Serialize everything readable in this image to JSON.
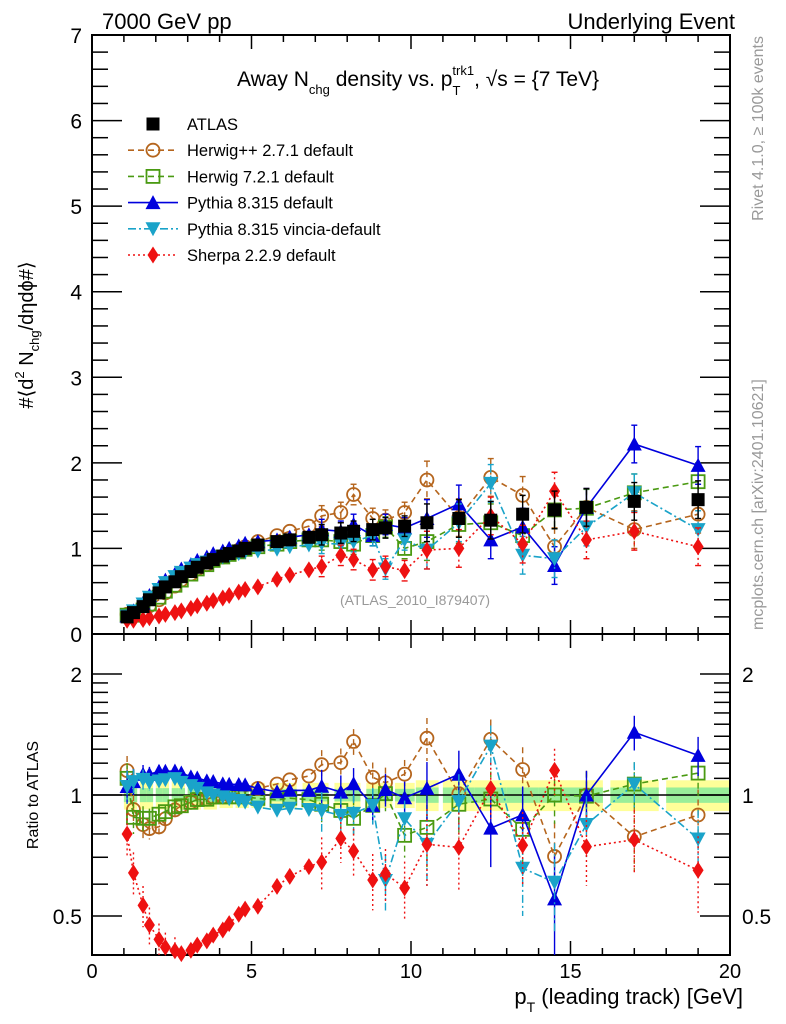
{
  "header": {
    "left": "7000 GeV pp",
    "right": "Underlying Event"
  },
  "side_labels": {
    "rivet": "Rivet 4.1.0, ≥ 100k events",
    "mcplots": "mcplots.cern.ch [arXiv:2401.10621]"
  },
  "analysis_tag": "(ATLAS_2010_I879407)",
  "chart_data": {
    "type": "scatter",
    "title": {
      "part1": "Away N",
      "sub1": "chg",
      "part2": " density vs. p",
      "sub2": "T",
      "sup2": "trk1",
      "part3": ", √s = {7 TeV}"
    },
    "xlabel": {
      "main": "p",
      "sub": "T",
      "rest": " (leading track) [GeV]"
    },
    "ylabel": {
      "pre": "#⟨d",
      "sup": "2",
      "mid": " N",
      "sub": "chg",
      "post": "/dηdϕ#⟩"
    },
    "ratio_ylabel": "Ratio to ATLAS",
    "xlim": [
      0,
      20
    ],
    "ylim": [
      0,
      7
    ],
    "ratio_ylim": [
      0.4,
      2.5
    ],
    "ratio_scale": "log",
    "x_ticks": [
      "0",
      "5",
      "10",
      "15",
      "20"
    ],
    "y_ticks": [
      "0",
      "1",
      "2",
      "3",
      "4",
      "5",
      "6",
      "7"
    ],
    "ratio_ticks": [
      "0.5",
      "1",
      "2"
    ],
    "legend_position": "top-left",
    "x": [
      1.1,
      1.3,
      1.6,
      1.8,
      2.1,
      2.3,
      2.6,
      2.8,
      3.1,
      3.3,
      3.6,
      3.8,
      4.1,
      4.3,
      4.6,
      4.8,
      5.2,
      5.8,
      6.2,
      6.8,
      7.2,
      7.8,
      8.2,
      8.8,
      9.2,
      9.8,
      10.5,
      11.5,
      12.5,
      13.5,
      14.5,
      15.5,
      17.0,
      19.0
    ],
    "series": [
      {
        "name": "ATLAS",
        "color": "#000000",
        "marker": "filled-square",
        "line": "none",
        "values": [
          0.2,
          0.25,
          0.32,
          0.4,
          0.48,
          0.55,
          0.61,
          0.67,
          0.73,
          0.78,
          0.83,
          0.87,
          0.91,
          0.94,
          0.97,
          1.0,
          1.04,
          1.08,
          1.1,
          1.13,
          1.16,
          1.18,
          1.2,
          1.22,
          1.24,
          1.26,
          1.3,
          1.35,
          1.33,
          1.4,
          1.45,
          1.48,
          1.55,
          1.57
        ],
        "band_ratio_err_inner": 0.04,
        "band_ratio_err_outer": 0.08
      },
      {
        "name": "Herwig++ 2.7.1 default",
        "color": "#b5651d",
        "marker": "open-circle",
        "line": "dashed",
        "values": [
          0.23,
          0.23,
          0.27,
          0.33,
          0.4,
          0.48,
          0.56,
          0.63,
          0.7,
          0.76,
          0.81,
          0.86,
          0.9,
          0.94,
          0.98,
          1.02,
          1.08,
          1.15,
          1.2,
          1.26,
          1.38,
          1.42,
          1.63,
          1.35,
          1.33,
          1.42,
          1.8,
          1.36,
          1.83,
          1.62,
          1.02,
          1.48,
          1.22,
          1.4
        ]
      },
      {
        "name": "Herwig 7.2.1 default",
        "color": "#4a9a12",
        "marker": "open-square",
        "line": "dashed",
        "values": [
          0.22,
          0.22,
          0.28,
          0.35,
          0.43,
          0.5,
          0.57,
          0.63,
          0.7,
          0.76,
          0.81,
          0.86,
          0.9,
          0.93,
          0.96,
          0.99,
          1.02,
          1.05,
          1.08,
          1.1,
          1.1,
          1.08,
          1.05,
          1.15,
          1.25,
          1.0,
          1.08,
          1.28,
          1.3,
          1.15,
          1.45,
          1.47,
          1.65,
          1.78
        ]
      },
      {
        "name": "Pythia 8.315 default",
        "color": "#0000dd",
        "marker": "filled-triangle-up",
        "line": "solid",
        "values": [
          0.21,
          0.27,
          0.36,
          0.45,
          0.55,
          0.63,
          0.7,
          0.76,
          0.81,
          0.86,
          0.9,
          0.94,
          0.97,
          1.0,
          1.03,
          1.06,
          1.08,
          1.1,
          1.13,
          1.16,
          1.22,
          1.2,
          1.28,
          1.15,
          1.28,
          1.24,
          1.35,
          1.52,
          1.1,
          1.25,
          0.8,
          1.48,
          2.22,
          1.97
        ]
      },
      {
        "name": "Pythia 8.315 vincia-default",
        "color": "#1aa3c9",
        "marker": "filled-triangle-down",
        "line": "dash-dot",
        "values": [
          0.21,
          0.27,
          0.35,
          0.43,
          0.52,
          0.6,
          0.67,
          0.72,
          0.77,
          0.81,
          0.84,
          0.87,
          0.9,
          0.92,
          0.94,
          0.96,
          0.97,
          0.99,
          1.02,
          1.04,
          1.06,
          1.05,
          1.08,
          1.15,
          0.76,
          1.1,
          0.98,
          1.3,
          1.76,
          0.92,
          0.88,
          1.25,
          1.65,
          1.22
        ]
      },
      {
        "name": "Sherpa 2.2.9 default",
        "color": "#ee1111",
        "marker": "filled-diamond",
        "line": "dotted",
        "values": [
          0.16,
          0.16,
          0.17,
          0.19,
          0.21,
          0.23,
          0.25,
          0.27,
          0.3,
          0.33,
          0.36,
          0.39,
          0.42,
          0.45,
          0.49,
          0.52,
          0.55,
          0.64,
          0.69,
          0.75,
          0.79,
          0.92,
          0.87,
          0.75,
          0.79,
          0.74,
          0.98,
          1.0,
          1.38,
          1.05,
          1.67,
          1.1,
          1.2,
          1.02
        ]
      }
    ]
  }
}
